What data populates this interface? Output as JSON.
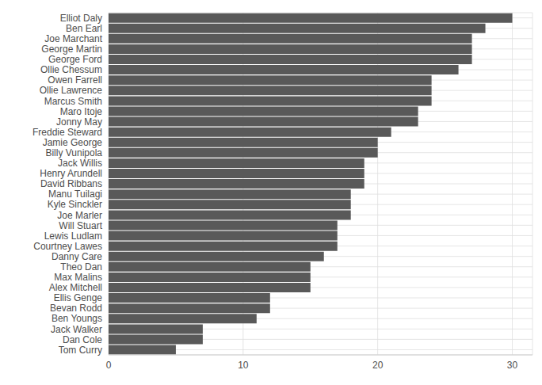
{
  "chart_data": {
    "type": "bar",
    "orientation": "horizontal",
    "categories": [
      "Elliot Daly",
      "Ben Earl",
      "Joe Marchant",
      "George Martin",
      "George Ford",
      "Ollie Chessum",
      "Owen Farrell",
      "Ollie Lawrence",
      "Marcus Smith",
      "Maro Itoje",
      "Jonny May",
      "Freddie Steward",
      "Jamie George",
      "Billy Vunipola",
      "Jack Willis",
      "Henry Arundell",
      "David Ribbans",
      "Manu Tuilagi",
      "Kyle Sinckler",
      "Joe Marler",
      "Will Stuart",
      "Lewis Ludlam",
      "Courtney Lawes",
      "Danny Care",
      "Theo Dan",
      "Max Malins",
      "Alex Mitchell",
      "Ellis Genge",
      "Bevan Rodd",
      "Ben Youngs",
      "Jack Walker",
      "Dan Cole",
      "Tom Curry"
    ],
    "values": [
      30,
      28,
      27,
      27,
      27,
      26,
      24,
      24,
      24,
      23,
      23,
      21,
      20,
      20,
      19,
      19,
      19,
      18,
      18,
      18,
      17,
      17,
      17,
      16,
      15,
      15,
      15,
      12,
      12,
      11,
      7,
      7,
      5
    ],
    "color": "#595959",
    "xlim": [
      0,
      31.5
    ],
    "xticks": [
      0,
      10,
      20,
      30
    ],
    "grid": true
  }
}
